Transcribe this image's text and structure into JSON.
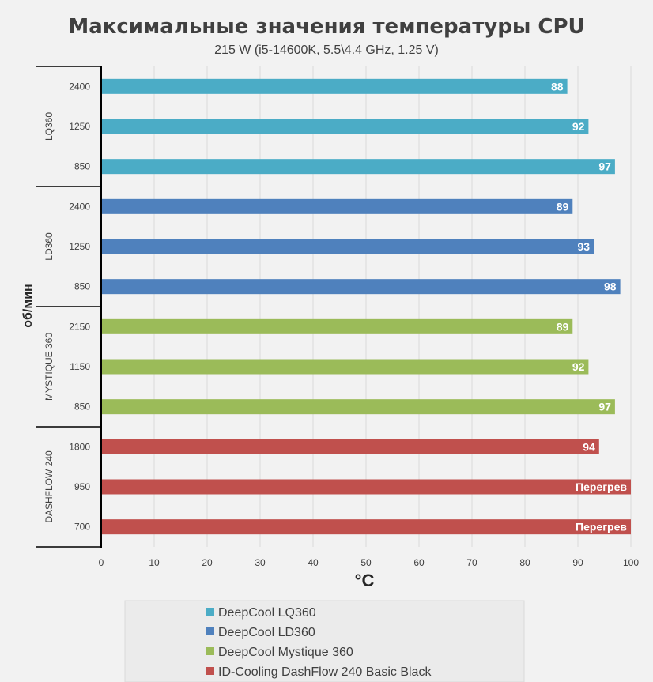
{
  "chart_data": {
    "type": "bar",
    "orientation": "horizontal",
    "title": "Максимальные значения температуры CPU",
    "subtitle": "215 W (i5-14600K, 5.5\\4.4 GHz, 1.25 V)",
    "xlabel": "°C",
    "ylabel": "об/мин",
    "xlim": [
      0,
      100
    ],
    "xticks": [
      0,
      10,
      20,
      30,
      40,
      50,
      60,
      70,
      80,
      90,
      100
    ],
    "grid": true,
    "legend_position": "bottom",
    "groups": [
      {
        "label": "LQ360",
        "series_index": 0,
        "bars": [
          {
            "rpm": "2400",
            "value": 88,
            "label": "88"
          },
          {
            "rpm": "1250",
            "value": 92,
            "label": "92"
          },
          {
            "rpm": "850",
            "value": 97,
            "label": "97"
          }
        ]
      },
      {
        "label": "LD360",
        "series_index": 1,
        "bars": [
          {
            "rpm": "2400",
            "value": 89,
            "label": "89"
          },
          {
            "rpm": "1250",
            "value": 93,
            "label": "93"
          },
          {
            "rpm": "850",
            "value": 98,
            "label": "98"
          }
        ]
      },
      {
        "label": "MYSTIQUE 360",
        "series_index": 2,
        "bars": [
          {
            "rpm": "2150",
            "value": 89,
            "label": "89"
          },
          {
            "rpm": "1150",
            "value": 92,
            "label": "92"
          },
          {
            "rpm": "850",
            "value": 97,
            "label": "97"
          }
        ]
      },
      {
        "label": "DASHFLOW 240",
        "series_index": 3,
        "bars": [
          {
            "rpm": "1800",
            "value": 94,
            "label": "94"
          },
          {
            "rpm": "950",
            "value": 100,
            "label": "Перегрев"
          },
          {
            "rpm": "700",
            "value": 100,
            "label": "Перегрев"
          }
        ]
      }
    ],
    "series": [
      {
        "name": "DeepCool LQ360",
        "color": "#4bacc6"
      },
      {
        "name": "DeepCool LD360",
        "color": "#4f81bd"
      },
      {
        "name": "DeepCool Mystique 360",
        "color": "#9bbb59"
      },
      {
        "name": "ID-Cooling DashFlow 240 Basic Black",
        "color": "#c0504d"
      }
    ]
  }
}
